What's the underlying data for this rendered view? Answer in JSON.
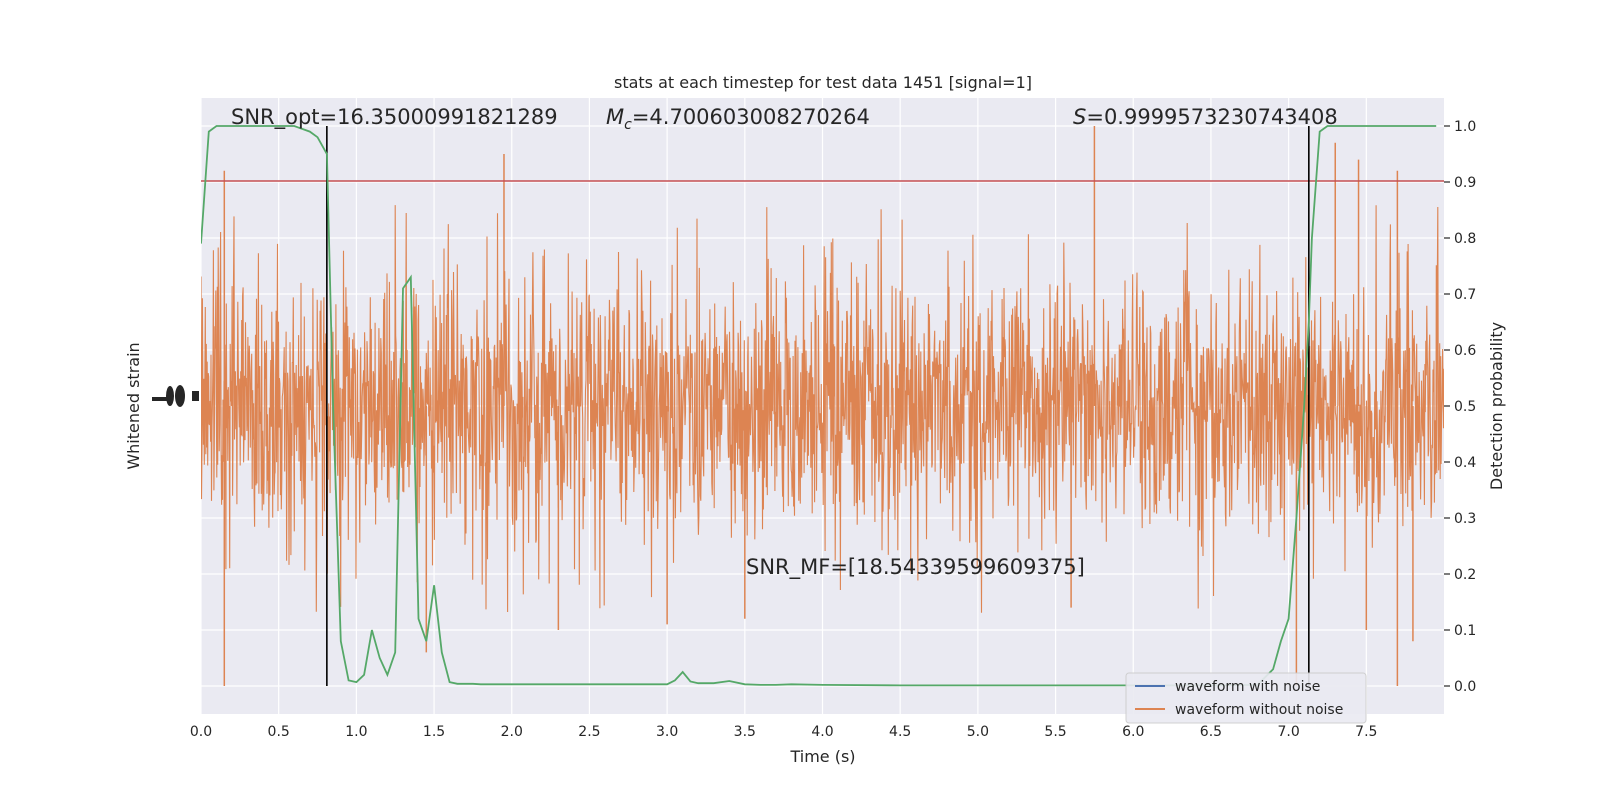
{
  "chart_data": {
    "type": "line",
    "title": "stats at each timestep for test data 1451 [signal=1]",
    "xlabel": "Time (s)",
    "ylabel_left": "Whitened strain",
    "ylabel_right": "Detection probability",
    "xlim": [
      0.0,
      8.0
    ],
    "ylim_right": [
      -0.05,
      1.05
    ],
    "x_ticks": [
      "0.0",
      "0.5",
      "1.0",
      "1.5",
      "2.0",
      "2.5",
      "3.0",
      "3.5",
      "4.0",
      "4.5",
      "5.0",
      "5.5",
      "6.0",
      "6.5",
      "7.0",
      "7.5"
    ],
    "y_ticks_right": [
      "0.0",
      "0.1",
      "0.2",
      "0.3",
      "0.4",
      "0.5",
      "0.6",
      "0.7",
      "0.8",
      "0.9",
      "1.0"
    ],
    "grid": true,
    "annotations": {
      "snr_opt": "SNR_opt=16.35000991821289",
      "mc_symbol": "M",
      "mc_sub": "c",
      "mc_value": "=4.700603008270264",
      "s_symbol": "S",
      "s_value": "=0.9999573230743408",
      "snr_mf": "SNR_MF=[18.54339599609375]"
    },
    "threshold": {
      "y": 0.9,
      "color": "#c44e52"
    },
    "vertical_lines": [
      0.81,
      7.13
    ],
    "legend": {
      "position": "lower-right",
      "entries": [
        {
          "label": "waveform with noise",
          "color": "#4c72b0"
        },
        {
          "label": "waveform without noise",
          "color": "#dd8452"
        }
      ]
    },
    "series": [
      {
        "name": "waveform with noise",
        "color": "#4c72b0",
        "values": []
      },
      {
        "name": "waveform without noise",
        "color": "#dd8452",
        "summary": "dense noisy strain centered near 0.5 on probability scale",
        "envelope_spikes_high": [
          [
            0.15,
            0.92
          ],
          [
            1.95,
            0.95
          ],
          [
            5.75,
            1.0
          ],
          [
            7.3,
            0.97
          ],
          [
            7.45,
            0.94
          ],
          [
            7.7,
            0.92
          ]
        ],
        "envelope_spikes_low": [
          [
            0.15,
            0.0
          ],
          [
            1.45,
            0.06
          ],
          [
            2.3,
            0.1
          ],
          [
            3.0,
            0.11
          ],
          [
            3.5,
            0.12
          ],
          [
            5.6,
            0.14
          ],
          [
            7.05,
            0.0
          ],
          [
            7.5,
            0.1
          ],
          [
            7.7,
            0.0
          ],
          [
            7.8,
            0.08
          ]
        ]
      },
      {
        "name": "detection probability",
        "color": "#55a868",
        "x": [
          0.0,
          0.05,
          0.1,
          0.2,
          0.3,
          0.4,
          0.5,
          0.6,
          0.7,
          0.75,
          0.81,
          0.85,
          0.9,
          0.95,
          1.0,
          1.05,
          1.1,
          1.15,
          1.2,
          1.25,
          1.3,
          1.35,
          1.4,
          1.45,
          1.5,
          1.55,
          1.6,
          1.65,
          1.7,
          1.75,
          1.8,
          1.85,
          1.9,
          2.0,
          2.1,
          2.2,
          2.3,
          2.4,
          2.6,
          2.8,
          3.0,
          3.05,
          3.1,
          3.15,
          3.2,
          3.25,
          3.3,
          3.4,
          3.5,
          3.6,
          3.7,
          3.8,
          4.0,
          4.5,
          5.0,
          5.5,
          6.0,
          6.5,
          6.8,
          6.9,
          6.95,
          7.0,
          7.05,
          7.1,
          7.13,
          7.15,
          7.2,
          7.25,
          7.3,
          7.4,
          7.5,
          7.6,
          7.7,
          7.8,
          7.9,
          7.95
        ],
        "values": [
          0.79,
          0.99,
          1.0,
          1.0,
          1.0,
          1.0,
          1.0,
          1.0,
          0.99,
          0.98,
          0.95,
          0.5,
          0.08,
          0.01,
          0.007,
          0.02,
          0.1,
          0.05,
          0.02,
          0.06,
          0.71,
          0.73,
          0.12,
          0.08,
          0.18,
          0.06,
          0.007,
          0.004,
          0.004,
          0.004,
          0.003,
          0.003,
          0.003,
          0.003,
          0.003,
          0.003,
          0.003,
          0.003,
          0.003,
          0.003,
          0.003,
          0.01,
          0.025,
          0.008,
          0.005,
          0.005,
          0.005,
          0.009,
          0.003,
          0.002,
          0.002,
          0.003,
          0.002,
          0.001,
          0.001,
          0.001,
          0.001,
          0.001,
          0.002,
          0.03,
          0.08,
          0.12,
          0.3,
          0.5,
          0.65,
          0.8,
          0.99,
          1.0,
          1.0,
          1.0,
          1.0,
          1.0,
          1.0,
          1.0,
          1.0,
          1.0
        ]
      }
    ]
  }
}
